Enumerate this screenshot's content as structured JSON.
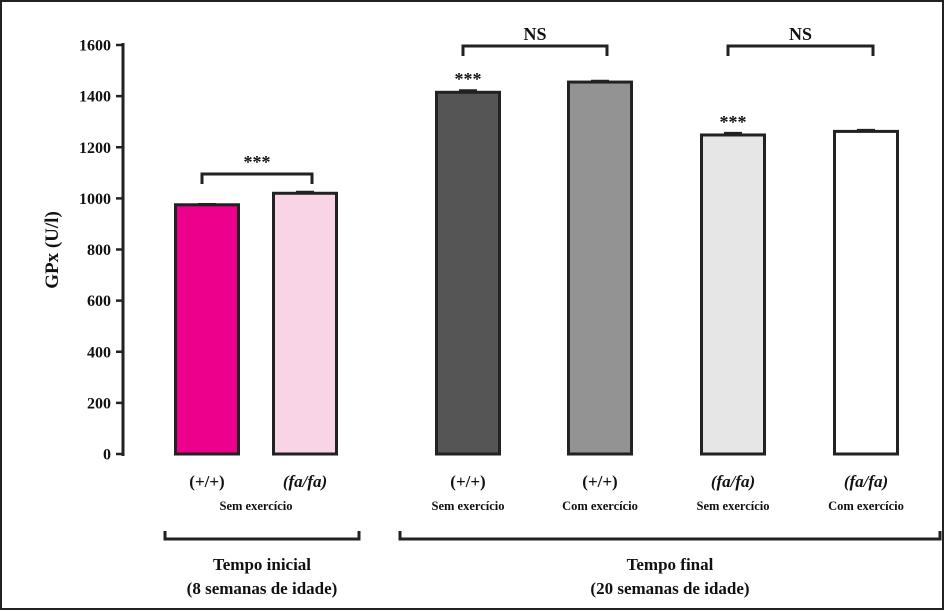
{
  "chart_data": {
    "type": "bar",
    "ylabel": "GPx (U/l)",
    "ylim": [
      0,
      1600
    ],
    "yticks": [
      "0",
      "200",
      "400",
      "600",
      "800",
      "1000",
      "1200",
      "1400",
      "1600"
    ],
    "ytick_values": [
      0,
      200,
      400,
      600,
      800,
      1000,
      1200,
      1400,
      1600
    ],
    "categories": [
      {
        "genotype": "(+/+)",
        "italic": false,
        "condition": "Sem exercício"
      },
      {
        "genotype": "(fa/fa)",
        "italic": true,
        "condition": "Sem exercício"
      },
      {
        "genotype": "(+/+)",
        "italic": false,
        "condition": "Sem exercício"
      },
      {
        "genotype": "(+/+)",
        "italic": false,
        "condition": "Com exercício"
      },
      {
        "genotype": "(fa/fa)",
        "italic": true,
        "condition": "Sem exercício"
      },
      {
        "genotype": "(fa/fa)",
        "italic": true,
        "condition": "Com exercício"
      }
    ],
    "shared_condition_label": "Sem exercício",
    "values": [
      975,
      1020,
      1415,
      1455,
      1248,
      1262
    ],
    "errors": [
      3,
      6,
      8,
      5,
      8,
      6
    ],
    "colors": [
      "#ec008c",
      "#f8d4e6",
      "#555555",
      "#939393",
      "#e6e6e6",
      "#ffffff"
    ],
    "significance": [
      {
        "bars": [
          0,
          1
        ],
        "label": "***"
      },
      {
        "bars": [
          2,
          3
        ],
        "label": "NS"
      },
      {
        "bars": [
          4,
          5
        ],
        "label": "NS"
      }
    ],
    "bar_annotations": [
      {
        "bar": 2,
        "label": "***"
      },
      {
        "bar": 4,
        "label": "***"
      }
    ],
    "groups": [
      {
        "bars": [
          0,
          1
        ],
        "line1": "Tempo inicial",
        "line2": "(8 semanas de idade)"
      },
      {
        "bars": [
          2,
          5
        ],
        "line1": "Tempo final",
        "line2": "(20 semanas de idade)"
      }
    ]
  }
}
